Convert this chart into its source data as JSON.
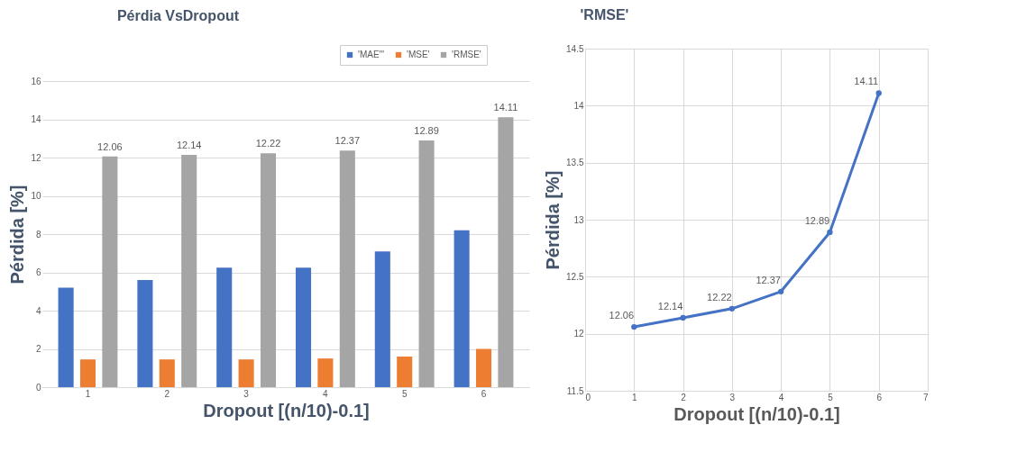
{
  "chart_data": [
    {
      "type": "bar",
      "title": "Pérdia VsDropout",
      "xlabel": "Dropout [(n/10)-0.1]",
      "ylabel": "Pérdida [%]",
      "categories": [
        "1",
        "2",
        "3",
        "4",
        "5",
        "6"
      ],
      "series": [
        {
          "name": "'MAE'\"",
          "color": "#4472c4",
          "values": [
            5.2,
            5.6,
            6.25,
            6.25,
            7.1,
            8.2
          ]
        },
        {
          "name": "'MSE'",
          "color": "#ed7d31",
          "values": [
            1.45,
            1.45,
            1.45,
            1.5,
            1.6,
            2.0
          ]
        },
        {
          "name": "'RMSE'",
          "color": "#a5a5a5",
          "values": [
            12.06,
            12.14,
            12.22,
            12.37,
            12.89,
            14.11
          ],
          "value_labels": [
            "12.06",
            "12.14",
            "12.22",
            "12.37",
            "12.89",
            "14.11"
          ]
        }
      ],
      "ylim": [
        0,
        16
      ],
      "yticks": [
        0,
        2,
        4,
        6,
        8,
        10,
        12,
        14,
        16
      ],
      "grid": "y",
      "legend": "top right"
    },
    {
      "type": "line",
      "title": "'RMSE'",
      "xlabel": "Dropout [(n/10)-0.1]",
      "ylabel": "Pérdida [%]",
      "x": [
        1,
        2,
        3,
        4,
        5,
        6
      ],
      "series": [
        {
          "color": "#4472c4",
          "values": [
            12.06,
            12.14,
            12.22,
            12.37,
            12.89,
            14.11
          ]
        }
      ],
      "xlim": [
        0,
        7
      ],
      "xticks": [
        0,
        1,
        2,
        3,
        4,
        5,
        6,
        7
      ],
      "ylim": [
        11.5,
        14.5
      ],
      "yticks": [
        11.5,
        12,
        12.5,
        13,
        13.5,
        14,
        14.5
      ],
      "grid": true,
      "marker": "circle",
      "data_labels": true
    }
  ]
}
